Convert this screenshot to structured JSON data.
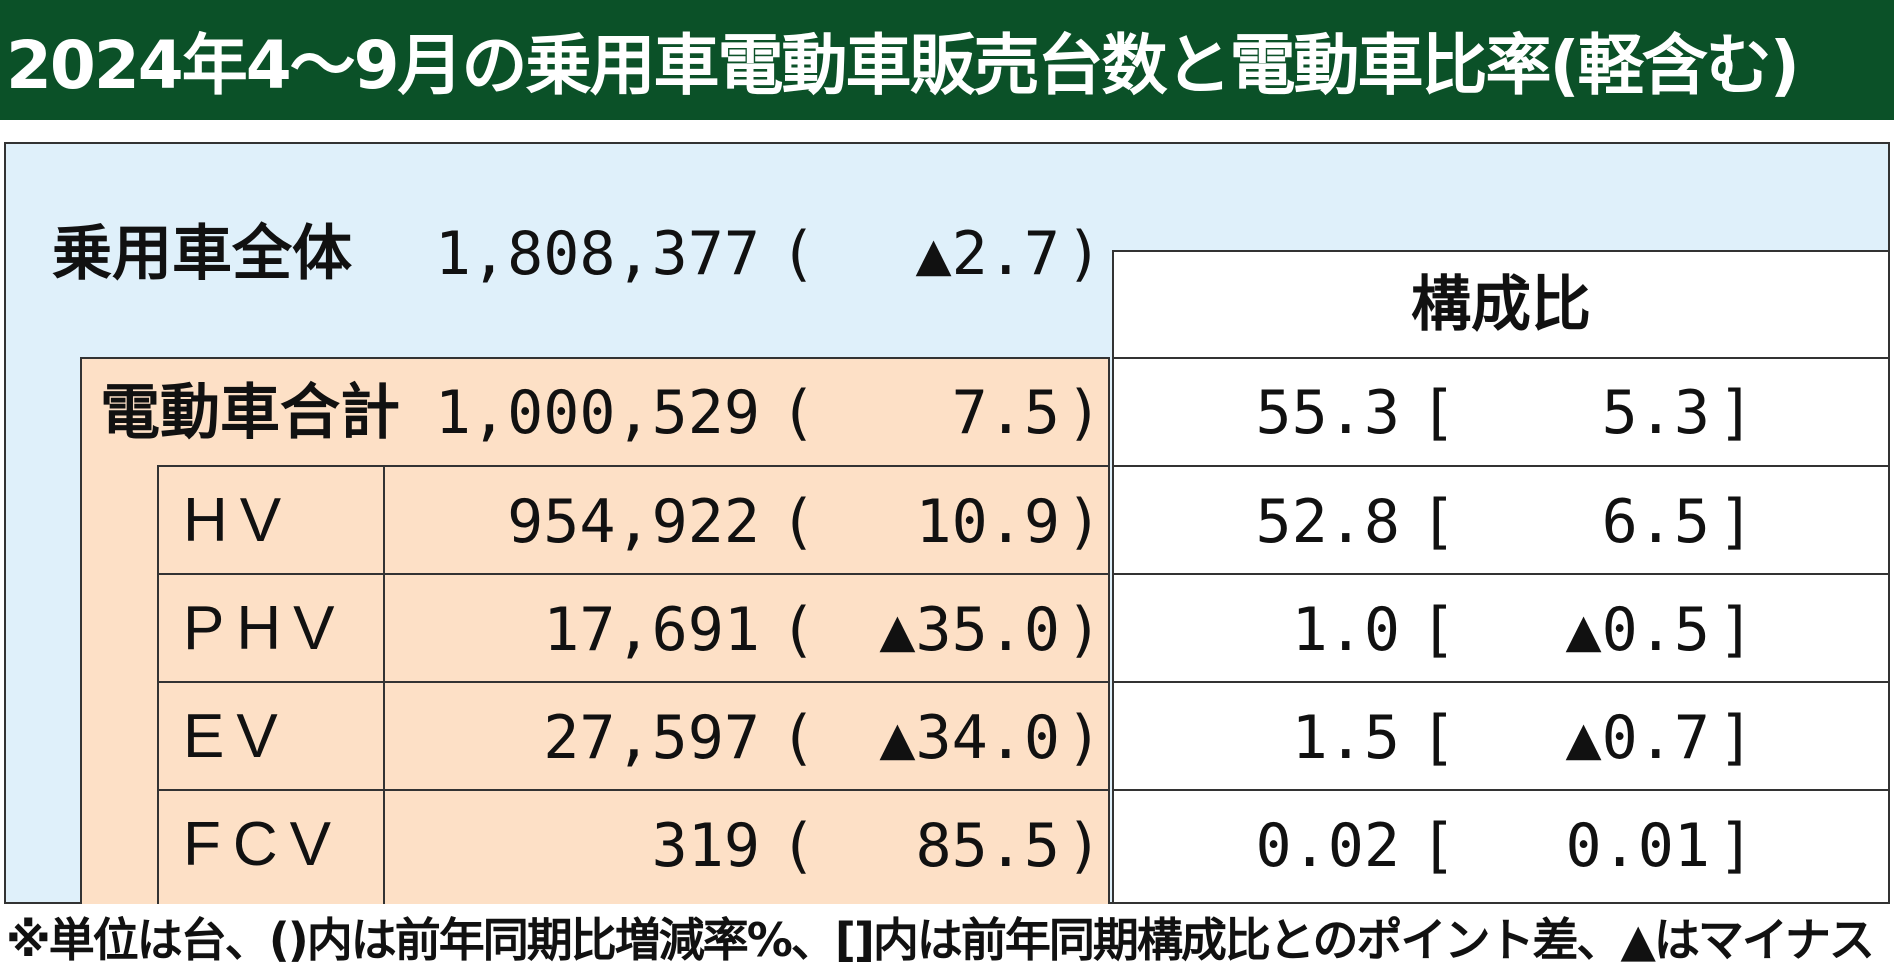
{
  "title": "2024年4〜9月の乗用車電動車販売台数と電動車比率(軽含む)",
  "total": {
    "label": "乗用車全体",
    "units": "1,808,377",
    "yoy_open": "(",
    "yoy": "▲2.7",
    "yoy_close": ")"
  },
  "ratio_header": "構成比",
  "electric_total": {
    "label": "電動車合計",
    "units": "1,000,529",
    "yoy": "7.5",
    "share": "55.3",
    "share_diff": "5.3"
  },
  "rows": [
    {
      "label": "HV",
      "units": "954,922",
      "yoy": "10.9",
      "share": "52.8",
      "share_diff": "6.5"
    },
    {
      "label": "PHV",
      "units": "17,691",
      "yoy": "▲35.0",
      "share": "1.0",
      "share_diff": "▲0.5"
    },
    {
      "label": "EV",
      "units": "27,597",
      "yoy": "▲34.0",
      "share": "1.5",
      "share_diff": "▲0.7"
    },
    {
      "label": "FCV",
      "units": "319",
      "yoy": "85.5",
      "share": "0.02",
      "share_diff": "0.01"
    }
  ],
  "brackets": {
    "paren_open": "(",
    "paren_close": ")",
    "sq_open": "[",
    "sq_close": "]"
  },
  "footnote": "※単位は台、()内は前年同期比増減率%、[]内は前年同期構成比とのポイント差、▲はマイナス",
  "colors": {
    "title_bg": "#0b5128",
    "panel_bg": "#dff0fa",
    "electric_bg": "#fde0c6",
    "ratio_bg": "#ffffff"
  }
}
